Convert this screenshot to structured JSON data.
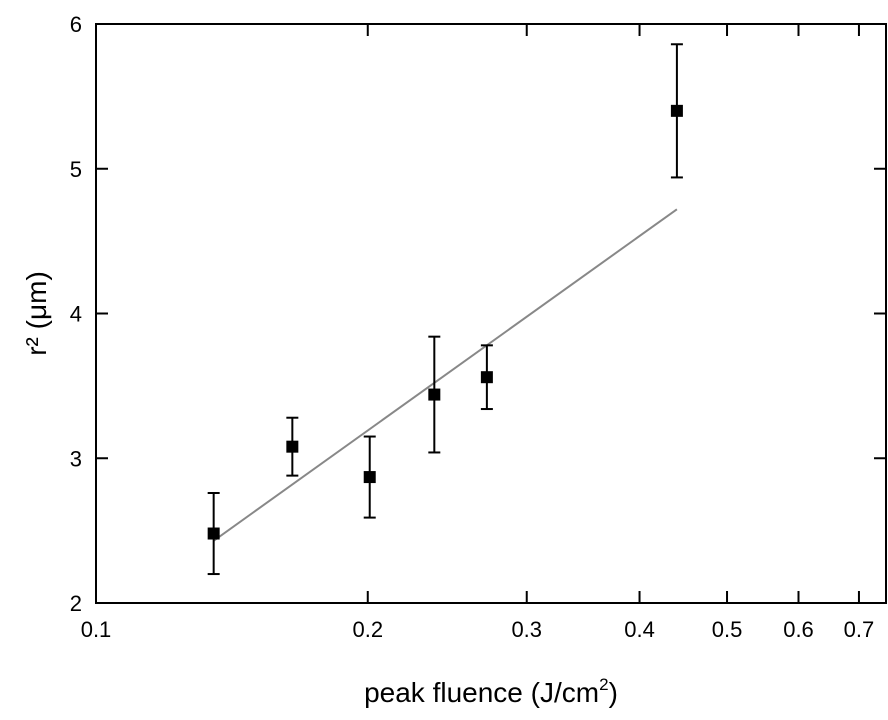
{
  "chart_data": {
    "type": "scatter",
    "xlabel": "peak fluence (J/cm",
    "xlabel_sup": "2",
    "xlabel_close": ")",
    "ylabel": "r² (μm)",
    "xscale": "log",
    "xlim": [
      0.1,
      0.75
    ],
    "ylim": [
      2,
      6
    ],
    "xticks": [
      {
        "value": 0.1,
        "label": "0.1"
      },
      {
        "value": 0.2,
        "label": "0.2"
      },
      {
        "value": 0.3,
        "label": "0.3"
      },
      {
        "value": 0.4,
        "label": "0.4"
      },
      {
        "value": 0.5,
        "label": "0.5"
      },
      {
        "value": 0.6,
        "label": "0.6"
      },
      {
        "value": 0.7,
        "label": "0.7"
      }
    ],
    "yticks": [
      {
        "value": 2,
        "label": "2"
      },
      {
        "value": 3,
        "label": "3"
      },
      {
        "value": 4,
        "label": "4"
      },
      {
        "value": 5,
        "label": "5"
      },
      {
        "value": 6,
        "label": "6"
      }
    ],
    "series": [
      {
        "type": "scatter",
        "marker": "square",
        "color": "#000000",
        "points": [
          {
            "x": 0.135,
            "y": 2.48,
            "err": 0.28
          },
          {
            "x": 0.165,
            "y": 3.08,
            "err": 0.2
          },
          {
            "x": 0.201,
            "y": 2.87,
            "err": 0.28
          },
          {
            "x": 0.237,
            "y": 3.44,
            "err": 0.4
          },
          {
            "x": 0.271,
            "y": 3.56,
            "err": 0.22
          },
          {
            "x": 0.44,
            "y": 5.4,
            "err": 0.46
          }
        ]
      },
      {
        "type": "line",
        "color": "#888888",
        "points": [
          {
            "x": 0.135,
            "y": 2.43
          },
          {
            "x": 0.44,
            "y": 4.72
          }
        ]
      }
    ]
  }
}
